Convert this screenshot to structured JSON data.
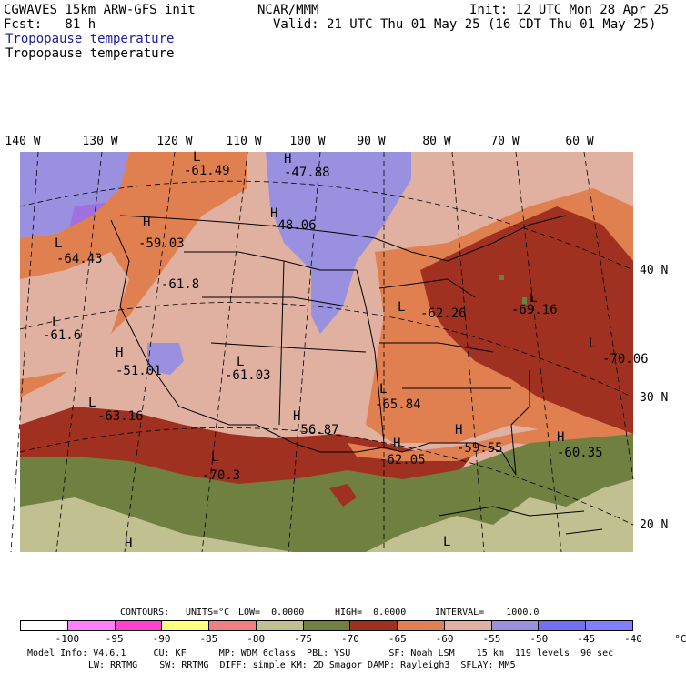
{
  "header": {
    "line1_left": "CGWAVES 15km ARW-GFS init",
    "line1_mid": "NCAR/MMM",
    "line1_right": "Init: 12 UTC Mon 28 Apr 25",
    "line2_left": "Fcst:   81 h",
    "line2_right": "Valid: 21 UTC Thu 01 May 25 (16 CDT Thu 01 May 25)",
    "field_title_1": "Tropopause temperature",
    "field_title_2": "Tropopause temperature"
  },
  "longitudes": [
    "140 W",
    "130 W",
    "120 W",
    "110 W",
    "100 W",
    "90 W",
    "80 W",
    "70 W",
    "60 W"
  ],
  "latitudes": [
    "40 N",
    "30 N",
    "20 N"
  ],
  "map_labels": {
    "values": [
      "-61.49",
      "-47.88",
      "-48.06",
      "-59.03",
      "-64.43",
      "-61.8",
      "-61.6",
      "-51.01",
      "-61.03",
      "-63.16",
      "-56.87",
      "-70.3",
      "-65.84",
      "-62.26",
      "-69.16",
      "-70.06",
      "-59.55",
      "-60.35",
      "-62.05"
    ],
    "highs": [
      "H",
      "H",
      "H",
      "H",
      "H",
      "H",
      "H",
      "H",
      "H"
    ],
    "lows": [
      "L",
      "L",
      "L",
      "L",
      "L",
      "L",
      "L",
      "L",
      "L",
      "L",
      "L"
    ]
  },
  "contours": {
    "label": "CONTOURS:",
    "units": "UNITS=°C",
    "low": "LOW=  0.0000",
    "high": "HIGH=  0.0000",
    "interval": "INTERVAL=    1000.0"
  },
  "colorbar": {
    "colors": [
      "#ffffff",
      "#ff80ff",
      "#ff40d0",
      "#ffff80",
      "#f08080",
      "#c0c090",
      "#708040",
      "#a03020",
      "#e08050",
      "#e0b0a0",
      "#9a90e0",
      "#7070f0",
      "#8080ff"
    ],
    "ticks": [
      "-100",
      "-95",
      "-90",
      "-85",
      "-80",
      "-75",
      "-70",
      "-65",
      "-60",
      "-55",
      "-50",
      "-45",
      "-40",
      "°C"
    ]
  },
  "footer": {
    "line1": "Model Info: V4.6.1     CU: KF      MP: WDM 6class  PBL: YSU       SF: Noah LSM    15 km  119 levels  90 sec",
    "line2": "LW: RRTMG    SW: RRTMG  DIFF: simple KM: 2D Smagor DAMP: Rayleigh3  SFLAY: MM5"
  }
}
